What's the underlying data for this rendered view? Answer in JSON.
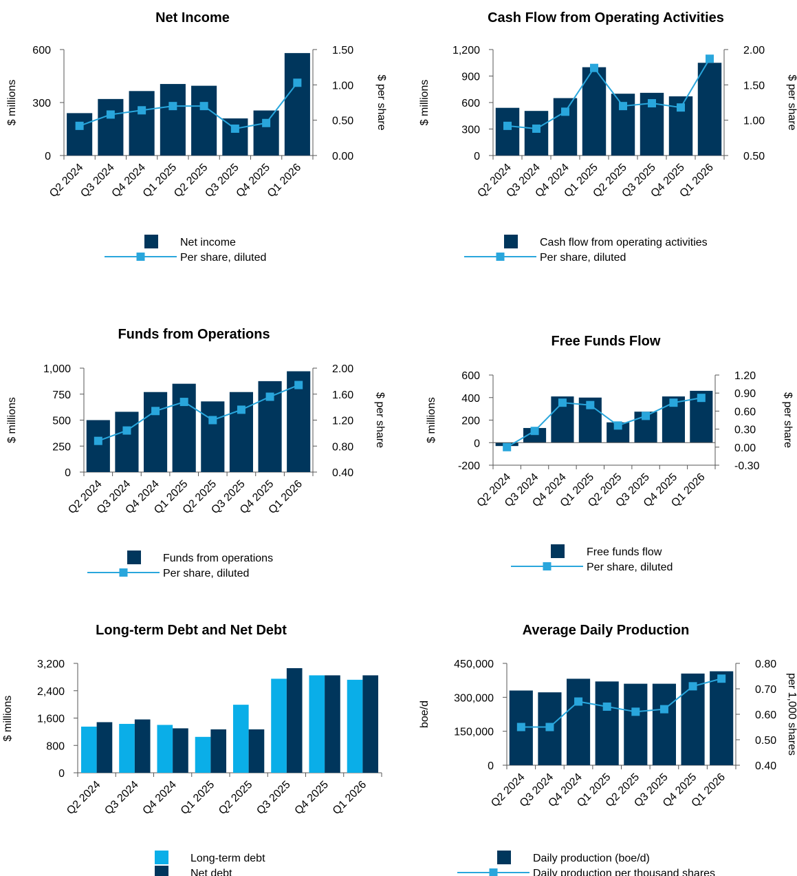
{
  "colors": {
    "bar": "#00365c",
    "line": "#29a6dc",
    "bar_light": "#0aaee8"
  },
  "chart_data": [
    {
      "type": "bar+line",
      "title": "Net Income",
      "categories": [
        "Q2 2024",
        "Q3 2024",
        "Q4 2024",
        "Q1 2025",
        "Q2 2025",
        "Q3 2025",
        "Q4 2025",
        "Q1 2026"
      ],
      "ylabel": "$ millions",
      "y2label": "$ per share",
      "ylim": [
        0,
        600
      ],
      "yticks": [
        0,
        300,
        600
      ],
      "ytick_labels": [
        "0",
        "300",
        "600"
      ],
      "y2lim": [
        0,
        1.5
      ],
      "y2ticks": [
        0,
        0.5,
        1.0,
        1.5
      ],
      "y2tick_labels": [
        "0.00",
        "0.50",
        "1.00",
        "1.50"
      ],
      "series": [
        {
          "name": "Net income",
          "kind": "bar",
          "values": [
            240,
            320,
            365,
            405,
            395,
            210,
            255,
            580
          ]
        },
        {
          "name": "Per share, diluted",
          "kind": "line",
          "values": [
            0.42,
            0.58,
            0.64,
            0.7,
            0.7,
            0.38,
            0.46,
            1.03
          ]
        }
      ],
      "legend": "bottom"
    },
    {
      "type": "bar+line",
      "title": "Cash Flow from Operating Activities",
      "categories": [
        "Q2 2024",
        "Q3 2024",
        "Q4 2024",
        "Q1 2025",
        "Q2 2025",
        "Q3 2025",
        "Q4 2025",
        "Q1 2026"
      ],
      "ylabel": "$ millions",
      "y2label": "$ per share",
      "ylim": [
        0,
        1200
      ],
      "yticks": [
        0,
        300,
        600,
        900,
        1200
      ],
      "ytick_labels": [
        "0",
        "300",
        "600",
        "900",
        "1,200"
      ],
      "y2lim": [
        0.5,
        2.0
      ],
      "y2ticks": [
        0.5,
        1.0,
        1.5,
        2.0
      ],
      "y2tick_labels": [
        "0.50",
        "1.00",
        "1.50",
        "2.00"
      ],
      "series": [
        {
          "name": "Cash flow from operating activities",
          "kind": "bar",
          "values": [
            540,
            505,
            650,
            1000,
            700,
            710,
            670,
            1050
          ]
        },
        {
          "name": "Per share, diluted",
          "kind": "line",
          "values": [
            0.92,
            0.88,
            1.12,
            1.74,
            1.2,
            1.24,
            1.18,
            1.87
          ]
        }
      ],
      "legend": "bottom"
    },
    {
      "type": "bar+line",
      "title": "Funds from Operations",
      "categories": [
        "Q2 2024",
        "Q3 2024",
        "Q4 2024",
        "Q1 2025",
        "Q2 2025",
        "Q3 2025",
        "Q4 2025",
        "Q1 2026"
      ],
      "ylabel": "$ millions",
      "y2label": "$ per share",
      "ylim": [
        0,
        1000
      ],
      "yticks": [
        0,
        250,
        500,
        750,
        1000
      ],
      "ytick_labels": [
        "0",
        "250",
        "500",
        "750",
        "1,000"
      ],
      "y2lim": [
        0.4,
        2.0
      ],
      "y2ticks": [
        0.4,
        0.8,
        1.2,
        1.6,
        2.0
      ],
      "y2tick_labels": [
        "0.40",
        "0.80",
        "1.20",
        "1.60",
        "2.00"
      ],
      "series": [
        {
          "name": "Funds from operations",
          "kind": "bar",
          "values": [
            500,
            580,
            770,
            850,
            680,
            770,
            875,
            970
          ]
        },
        {
          "name": "Per share, diluted",
          "kind": "line",
          "values": [
            0.88,
            1.04,
            1.34,
            1.48,
            1.2,
            1.36,
            1.56,
            1.74
          ]
        }
      ],
      "legend": "bottom"
    },
    {
      "type": "bar+line",
      "title": "Free Funds Flow",
      "categories": [
        "Q2 2024",
        "Q3 2024",
        "Q4 2024",
        "Q1 2025",
        "Q2 2025",
        "Q3 2025",
        "Q4 2025",
        "Q1 2026"
      ],
      "ylabel": "$ millions",
      "y2label": "$ per share",
      "ylim": [
        -200,
        600
      ],
      "yticks": [
        -200,
        0,
        200,
        400,
        600
      ],
      "ytick_labels": [
        "-200",
        "0",
        "200",
        "400",
        "600"
      ],
      "y2lim": [
        -0.3,
        1.2
      ],
      "y2ticks": [
        -0.3,
        0,
        0.3,
        0.6,
        0.9,
        1.2
      ],
      "y2tick_labels": [
        "-0.30",
        "0.00",
        "0.30",
        "0.60",
        "0.90",
        "1.20"
      ],
      "series": [
        {
          "name": "Free funds flow",
          "kind": "bar",
          "values": [
            -30,
            130,
            410,
            400,
            180,
            275,
            410,
            460
          ]
        },
        {
          "name": "Per share, diluted",
          "kind": "line",
          "values": [
            0.0,
            0.27,
            0.74,
            0.7,
            0.36,
            0.52,
            0.74,
            0.82
          ]
        }
      ],
      "legend": "bottom"
    },
    {
      "type": "bar",
      "title": "Long-term Debt and Net Debt",
      "categories": [
        "Q2 2024",
        "Q3 2024",
        "Q4 2024",
        "Q1 2025",
        "Q2 2025",
        "Q3 2025",
        "Q4 2025",
        "Q1 2026"
      ],
      "ylabel": "$ millions",
      "ylim": [
        0,
        3200
      ],
      "yticks": [
        0,
        800,
        1600,
        2400,
        3200
      ],
      "ytick_labels": [
        "0",
        "800",
        "1,600",
        "2,400",
        "3,200"
      ],
      "series": [
        {
          "name": "Long-term debt",
          "kind": "bar",
          "values": [
            1350,
            1430,
            1400,
            1050,
            1990,
            2750,
            2850,
            2720
          ]
        },
        {
          "name": "Net debt",
          "kind": "bar",
          "values": [
            1480,
            1560,
            1300,
            1270,
            1270,
            3060,
            2850,
            2850
          ]
        }
      ],
      "legend": "bottom"
    },
    {
      "type": "bar+line",
      "title": "Average Daily Production",
      "categories": [
        "Q2 2024",
        "Q3 2024",
        "Q4 2024",
        "Q1 2025",
        "Q2 2025",
        "Q3 2025",
        "Q4 2025",
        "Q1 2026"
      ],
      "ylabel": "boe/d",
      "y2label": "per 1,000 shares",
      "ylim": [
        0,
        450000
      ],
      "yticks": [
        0,
        150000,
        300000,
        450000
      ],
      "ytick_labels": [
        "0",
        "150,000",
        "300,000",
        "450,000"
      ],
      "y2lim": [
        0.4,
        0.8
      ],
      "y2ticks": [
        0.4,
        0.5,
        0.6,
        0.7,
        0.8
      ],
      "y2tick_labels": [
        "0.40",
        "0.50",
        "0.60",
        "0.70",
        "0.80"
      ],
      "series": [
        {
          "name": "Daily production (boe/d)",
          "kind": "bar",
          "values": [
            330000,
            322000,
            382000,
            370000,
            360000,
            360000,
            405000,
            415000
          ]
        },
        {
          "name": "Daily production per thousand shares",
          "kind": "line",
          "values": [
            0.55,
            0.55,
            0.65,
            0.63,
            0.61,
            0.62,
            0.71,
            0.74
          ]
        }
      ],
      "legend": "bottom"
    }
  ]
}
